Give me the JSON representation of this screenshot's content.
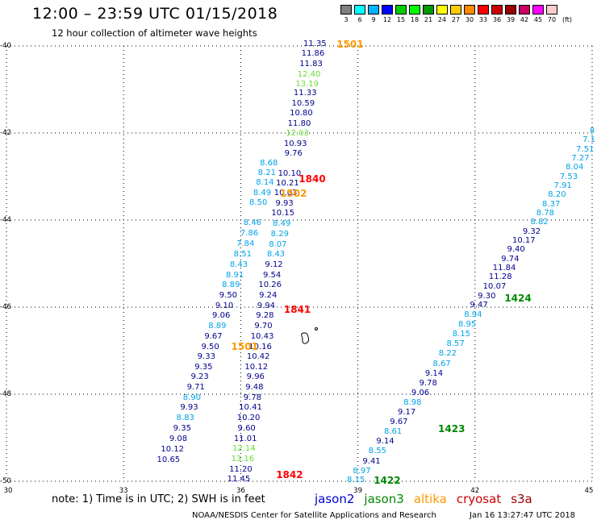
{
  "title": "12:00 – 23:59 UTC 01/15/2018",
  "subtitle": "12 hour collection of altimeter wave heights",
  "colorbar": {
    "unit": "(ft)",
    "labels": [
      "3",
      "6",
      "9",
      "12",
      "15",
      "18",
      "21",
      "24",
      "27",
      "30",
      "33",
      "36",
      "39",
      "42",
      "45",
      "70"
    ],
    "colors": [
      "#808080",
      "#00ffff",
      "#00b4ff",
      "#0000ff",
      "#00cc00",
      "#00ff00",
      "#009900",
      "#ffff00",
      "#ffcc00",
      "#ff8800",
      "#ff0000",
      "#cc0000",
      "#990000",
      "#cc0066",
      "#ff00ff",
      "#ffcccc"
    ]
  },
  "y_ticks": [
    "-40",
    "-42",
    "-44",
    "-46",
    "-48",
    "-50"
  ],
  "x_ticks": [
    "30",
    "33",
    "36",
    "39",
    "42",
    "45"
  ],
  "note": "note: 1) Time is in UTC; 2) SWH is in feet",
  "legend": [
    {
      "label": "jason2",
      "color": "#0000cc"
    },
    {
      "label": "jason3",
      "color": "#008800"
    },
    {
      "label": "altika",
      "color": "#ff9900"
    },
    {
      "label": "cryosat",
      "color": "#cc0000"
    },
    {
      "label": "s3a",
      "color": "#990000"
    }
  ],
  "credit": "NOAA/NESDIS Center for Satellite Applications and Research",
  "timestamp": "Jan 16 13:27:47 UTC 2018",
  "colors": {
    "c_navy": "#00008b",
    "c_cyan": "#00a2e8",
    "c_lgreen": "#66dd33",
    "c_orange": "#ff9900",
    "c_red": "#ff0000",
    "c_green": "#008800"
  },
  "pass_labels": [
    {
      "text": "1501",
      "lon": 38.8,
      "lat": -39.97,
      "color": "c_orange"
    },
    {
      "text": "1840",
      "lon": 37.83,
      "lat": -43.05,
      "color": "c_red"
    },
    {
      "text": "1502",
      "lon": 37.35,
      "lat": -43.38,
      "color": "c_orange"
    },
    {
      "text": "1841",
      "lon": 37.45,
      "lat": -46.05,
      "color": "c_red"
    },
    {
      "text": "1501",
      "lon": 36.1,
      "lat": -46.9,
      "color": "c_orange"
    },
    {
      "text": "1842",
      "lon": 37.25,
      "lat": -49.85,
      "color": "c_red"
    },
    {
      "text": "1424",
      "lon": 43.1,
      "lat": -45.8,
      "color": "c_green"
    },
    {
      "text": "1423",
      "lon": 41.4,
      "lat": -48.8,
      "color": "c_green"
    },
    {
      "text": "1422",
      "lon": 39.75,
      "lat": -49.98,
      "color": "c_green"
    }
  ],
  "readings": [
    {
      "v": "11.35",
      "lon": 37.9,
      "lat": -39.97,
      "c": "c_navy"
    },
    {
      "v": "11.86",
      "lon": 37.85,
      "lat": -40.18,
      "c": "c_navy"
    },
    {
      "v": "11.83",
      "lon": 37.8,
      "lat": -40.42,
      "c": "c_navy"
    },
    {
      "v": "12.40",
      "lon": 37.75,
      "lat": -40.66,
      "c": "c_lgreen"
    },
    {
      "v": "13.19",
      "lon": 37.7,
      "lat": -40.88,
      "c": "c_lgreen"
    },
    {
      "v": "11.33",
      "lon": 37.65,
      "lat": -41.1,
      "c": "c_navy"
    },
    {
      "v": "10.59",
      "lon": 37.6,
      "lat": -41.33,
      "c": "c_navy"
    },
    {
      "v": "10.80",
      "lon": 37.55,
      "lat": -41.56,
      "c": "c_navy"
    },
    {
      "v": "11.80",
      "lon": 37.5,
      "lat": -41.79,
      "c": "c_navy"
    },
    {
      "v": "12.03",
      "lon": 37.45,
      "lat": -42.02,
      "c": "c_lgreen"
    },
    {
      "v": "10.93",
      "lon": 37.4,
      "lat": -42.25,
      "c": "c_navy"
    },
    {
      "v": "9.76",
      "lon": 37.35,
      "lat": -42.48,
      "c": "c_navy"
    },
    {
      "v": "10.10",
      "lon": 37.25,
      "lat": -42.95,
      "c": "c_navy"
    },
    {
      "v": "10.21",
      "lon": 37.2,
      "lat": -43.17,
      "c": "c_navy"
    },
    {
      "v": "10.03",
      "lon": 37.15,
      "lat": -43.39,
      "c": "c_navy"
    },
    {
      "v": "9.93",
      "lon": 37.12,
      "lat": -43.63,
      "c": "c_navy"
    },
    {
      "v": "10.15",
      "lon": 37.08,
      "lat": -43.85,
      "c": "c_navy"
    },
    {
      "v": "8.49",
      "lon": 37.05,
      "lat": -44.1,
      "c": "c_cyan"
    },
    {
      "v": "8.29",
      "lon": 37.0,
      "lat": -44.33,
      "c": "c_cyan"
    },
    {
      "v": "8.07",
      "lon": 36.95,
      "lat": -44.57,
      "c": "c_cyan"
    },
    {
      "v": "8.43",
      "lon": 36.9,
      "lat": -44.8,
      "c": "c_cyan"
    },
    {
      "v": "9.12",
      "lon": 36.85,
      "lat": -45.03,
      "c": "c_navy"
    },
    {
      "v": "9.54",
      "lon": 36.8,
      "lat": -45.27,
      "c": "c_navy"
    },
    {
      "v": "10.26",
      "lon": 36.75,
      "lat": -45.5,
      "c": "c_navy"
    },
    {
      "v": "9.24",
      "lon": 36.7,
      "lat": -45.74,
      "c": "c_navy"
    },
    {
      "v": "9.94",
      "lon": 36.65,
      "lat": -45.98,
      "c": "c_navy"
    },
    {
      "v": "9.28",
      "lon": 36.62,
      "lat": -46.21,
      "c": "c_navy"
    },
    {
      "v": "9.70",
      "lon": 36.58,
      "lat": -46.45,
      "c": "c_navy"
    },
    {
      "v": "10.43",
      "lon": 36.55,
      "lat": -46.68,
      "c": "c_navy"
    },
    {
      "v": "10.16",
      "lon": 36.5,
      "lat": -46.92,
      "c": "c_navy"
    },
    {
      "v": "10.42",
      "lon": 36.45,
      "lat": -47.15,
      "c": "c_navy"
    },
    {
      "v": "10.12",
      "lon": 36.4,
      "lat": -47.39,
      "c": "c_navy"
    },
    {
      "v": "9.96",
      "lon": 36.38,
      "lat": -47.62,
      "c": "c_navy"
    },
    {
      "v": "9.48",
      "lon": 36.35,
      "lat": -47.85,
      "c": "c_navy"
    },
    {
      "v": "9.78",
      "lon": 36.3,
      "lat": -48.09,
      "c": "c_navy"
    },
    {
      "v": "10.41",
      "lon": 36.25,
      "lat": -48.32,
      "c": "c_navy"
    },
    {
      "v": "10.20",
      "lon": 36.2,
      "lat": -48.56,
      "c": "c_navy"
    },
    {
      "v": "9.60",
      "lon": 36.15,
      "lat": -48.8,
      "c": "c_navy"
    },
    {
      "v": "11.01",
      "lon": 36.12,
      "lat": -49.04,
      "c": "c_navy"
    },
    {
      "v": "12.14",
      "lon": 36.08,
      "lat": -49.26,
      "c": "c_lgreen"
    },
    {
      "v": "13.16",
      "lon": 36.05,
      "lat": -49.5,
      "c": "c_lgreen"
    },
    {
      "v": "11.20",
      "lon": 36.0,
      "lat": -49.74,
      "c": "c_navy"
    },
    {
      "v": "11.45",
      "lon": 35.95,
      "lat": -49.97,
      "c": "c_navy"
    },
    {
      "v": "8.68",
      "lon": 36.72,
      "lat": -42.7,
      "c": "c_cyan"
    },
    {
      "v": "8.21",
      "lon": 36.67,
      "lat": -42.92,
      "c": "c_cyan"
    },
    {
      "v": "8.14",
      "lon": 36.62,
      "lat": -43.15,
      "c": "c_cyan"
    },
    {
      "v": "8.49",
      "lon": 36.55,
      "lat": -43.38,
      "c": "c_cyan"
    },
    {
      "v": "8.50",
      "lon": 36.45,
      "lat": -43.62,
      "c": "c_cyan"
    },
    {
      "v": "8.46",
      "lon": 36.3,
      "lat": -44.08,
      "c": "c_cyan"
    },
    {
      "v": "7.86",
      "lon": 36.22,
      "lat": -44.32,
      "c": "c_cyan"
    },
    {
      "v": "7.84",
      "lon": 36.12,
      "lat": -44.55,
      "c": "c_cyan"
    },
    {
      "v": "8.51",
      "lon": 36.05,
      "lat": -44.8,
      "c": "c_cyan"
    },
    {
      "v": "8.43",
      "lon": 35.95,
      "lat": -45.03,
      "c": "c_cyan"
    },
    {
      "v": "8.91",
      "lon": 35.85,
      "lat": -45.27,
      "c": "c_cyan"
    },
    {
      "v": "8.89",
      "lon": 35.75,
      "lat": -45.5,
      "c": "c_cyan"
    },
    {
      "v": "9.50",
      "lon": 35.68,
      "lat": -45.74,
      "c": "c_navy"
    },
    {
      "v": "9.10",
      "lon": 35.58,
      "lat": -45.98,
      "c": "c_navy"
    },
    {
      "v": "9.06",
      "lon": 35.5,
      "lat": -46.21,
      "c": "c_navy"
    },
    {
      "v": "8.89",
      "lon": 35.4,
      "lat": -46.45,
      "c": "c_cyan"
    },
    {
      "v": "9.67",
      "lon": 35.3,
      "lat": -46.69,
      "c": "c_navy"
    },
    {
      "v": "9.50",
      "lon": 35.22,
      "lat": -46.92,
      "c": "c_navy"
    },
    {
      "v": "9.33",
      "lon": 35.12,
      "lat": -47.15,
      "c": "c_navy"
    },
    {
      "v": "9.35",
      "lon": 35.05,
      "lat": -47.39,
      "c": "c_navy"
    },
    {
      "v": "9.23",
      "lon": 34.95,
      "lat": -47.62,
      "c": "c_navy"
    },
    {
      "v": "9.71",
      "lon": 34.85,
      "lat": -47.85,
      "c": "c_navy"
    },
    {
      "v": "8.90",
      "lon": 34.75,
      "lat": -48.09,
      "c": "c_cyan"
    },
    {
      "v": "9.93",
      "lon": 34.68,
      "lat": -48.32,
      "c": "c_navy"
    },
    {
      "v": "8.83",
      "lon": 34.58,
      "lat": -48.56,
      "c": "c_cyan"
    },
    {
      "v": "9.35",
      "lon": 34.5,
      "lat": -48.8,
      "c": "c_navy"
    },
    {
      "v": "9.08",
      "lon": 34.4,
      "lat": -49.04,
      "c": "c_navy"
    },
    {
      "v": "10.12",
      "lon": 34.25,
      "lat": -49.27,
      "c": "c_navy"
    },
    {
      "v": "10.65",
      "lon": 34.15,
      "lat": -49.51,
      "c": "c_navy"
    },
    {
      "v": "8.15",
      "lon": 38.95,
      "lat": -49.98,
      "c": "c_cyan"
    },
    {
      "v": "8.97",
      "lon": 39.1,
      "lat": -49.77,
      "c": "c_cyan"
    },
    {
      "v": "9.41",
      "lon": 39.35,
      "lat": -49.55,
      "c": "c_navy"
    },
    {
      "v": "8.55",
      "lon": 39.5,
      "lat": -49.32,
      "c": "c_cyan"
    },
    {
      "v": "9.14",
      "lon": 39.7,
      "lat": -49.1,
      "c": "c_navy"
    },
    {
      "v": "8.61",
      "lon": 39.9,
      "lat": -48.87,
      "c": "c_cyan"
    },
    {
      "v": "9.67",
      "lon": 40.05,
      "lat": -48.65,
      "c": "c_navy"
    },
    {
      "v": "9.17",
      "lon": 40.25,
      "lat": -48.43,
      "c": "c_navy"
    },
    {
      "v": "8.98",
      "lon": 40.4,
      "lat": -48.2,
      "c": "c_cyan"
    },
    {
      "v": "9.06",
      "lon": 40.6,
      "lat": -47.98,
      "c": "c_navy"
    },
    {
      "v": "9.78",
      "lon": 40.8,
      "lat": -47.75,
      "c": "c_navy"
    },
    {
      "v": "9.14",
      "lon": 40.95,
      "lat": -47.53,
      "c": "c_navy"
    },
    {
      "v": "8.67",
      "lon": 41.15,
      "lat": -47.31,
      "c": "c_cyan"
    },
    {
      "v": "8.22",
      "lon": 41.3,
      "lat": -47.08,
      "c": "c_cyan"
    },
    {
      "v": "8.57",
      "lon": 41.5,
      "lat": -46.85,
      "c": "c_cyan"
    },
    {
      "v": "8.15",
      "lon": 41.65,
      "lat": -46.63,
      "c": "c_cyan"
    },
    {
      "v": "8.95",
      "lon": 41.8,
      "lat": -46.41,
      "c": "c_cyan"
    },
    {
      "v": "8.94",
      "lon": 41.95,
      "lat": -46.19,
      "c": "c_cyan"
    },
    {
      "v": "9.47",
      "lon": 42.1,
      "lat": -45.97,
      "c": "c_navy"
    },
    {
      "v": "9.30",
      "lon": 42.3,
      "lat": -45.75,
      "c": "c_navy"
    },
    {
      "v": "10.07",
      "lon": 42.5,
      "lat": -45.53,
      "c": "c_navy"
    },
    {
      "v": "11.28",
      "lon": 42.65,
      "lat": -45.32,
      "c": "c_navy"
    },
    {
      "v": "11.84",
      "lon": 42.75,
      "lat": -45.11,
      "c": "c_navy"
    },
    {
      "v": "9.74",
      "lon": 42.9,
      "lat": -44.9,
      "c": "c_navy"
    },
    {
      "v": "9.40",
      "lon": 43.05,
      "lat": -44.69,
      "c": "c_navy"
    },
    {
      "v": "10.17",
      "lon": 43.25,
      "lat": -44.48,
      "c": "c_navy"
    },
    {
      "v": "9.32",
      "lon": 43.45,
      "lat": -44.27,
      "c": "c_navy"
    },
    {
      "v": "8.82",
      "lon": 43.65,
      "lat": -44.06,
      "c": "c_cyan"
    },
    {
      "v": "8.78",
      "lon": 43.8,
      "lat": -43.85,
      "c": "c_cyan"
    },
    {
      "v": "8.37",
      "lon": 43.95,
      "lat": -43.64,
      "c": "c_cyan"
    },
    {
      "v": "8.20",
      "lon": 44.1,
      "lat": -43.43,
      "c": "c_cyan"
    },
    {
      "v": "7.91",
      "lon": 44.25,
      "lat": -43.22,
      "c": "c_cyan"
    },
    {
      "v": "7.53",
      "lon": 44.4,
      "lat": -43.01,
      "c": "c_cyan"
    },
    {
      "v": "8.04",
      "lon": 44.55,
      "lat": -42.8,
      "c": "c_cyan"
    },
    {
      "v": "7.27",
      "lon": 44.7,
      "lat": -42.59,
      "c": "c_cyan"
    },
    {
      "v": "7.51",
      "lon": 44.82,
      "lat": -42.38,
      "c": "c_cyan"
    },
    {
      "v": "7.1",
      "lon": 44.92,
      "lat": -42.17,
      "c": "c_cyan"
    },
    {
      "v": "8",
      "lon": 45.0,
      "lat": -41.96,
      "c": "c_cyan"
    }
  ]
}
